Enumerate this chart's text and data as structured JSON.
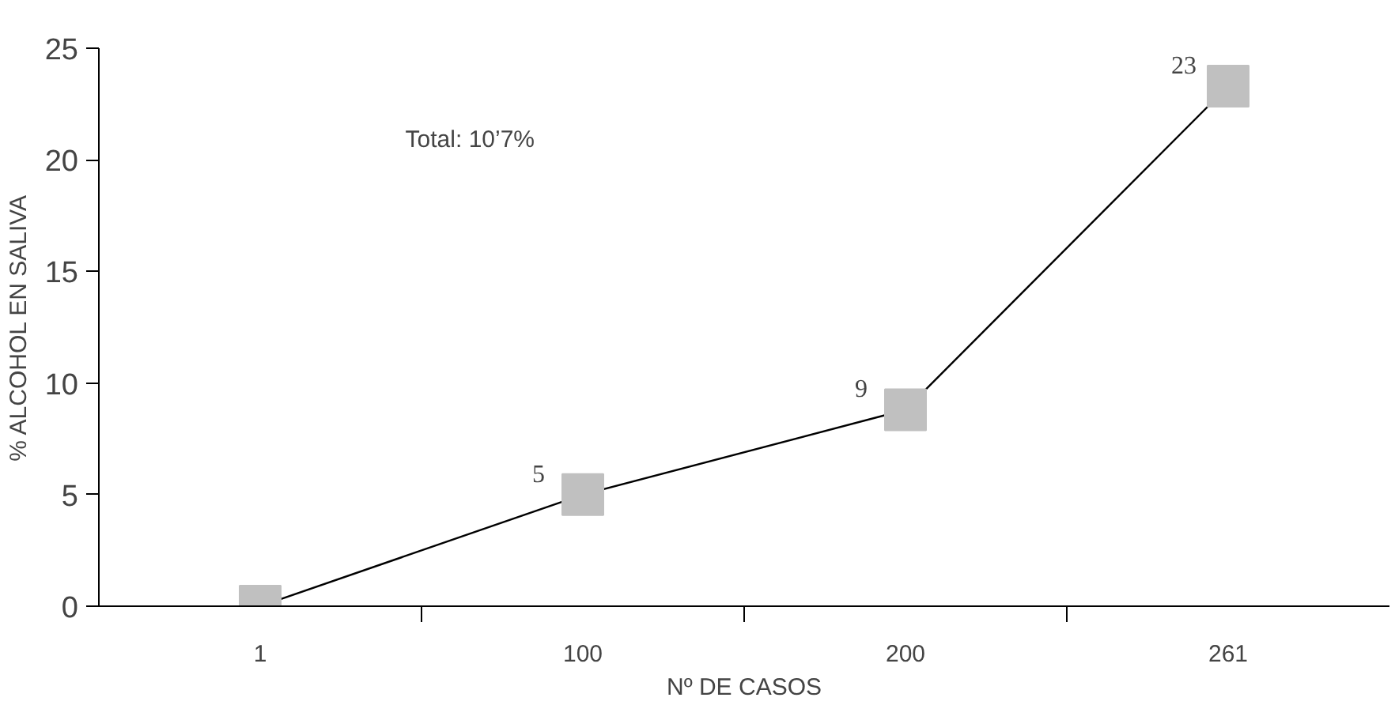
{
  "chart_data": {
    "type": "line",
    "xlabel": "Nº DE CASOS",
    "ylabel": "% ALCOHOL EN SALIVA",
    "categories": [
      "1",
      "100",
      "200",
      "261"
    ],
    "series": [
      {
        "color": "#c0c0c0",
        "values": [
          0,
          5,
          8.8,
          23.3
        ],
        "value_labels": [
          null,
          "5",
          "9",
          "23"
        ]
      }
    ],
    "ylim": [
      0,
      25
    ],
    "yticks": [
      0,
      5,
      10,
      15,
      20,
      25
    ],
    "grid": false,
    "marker": "square",
    "line_style": "solid",
    "annotations": [
      "Total: 10’7%"
    ]
  }
}
